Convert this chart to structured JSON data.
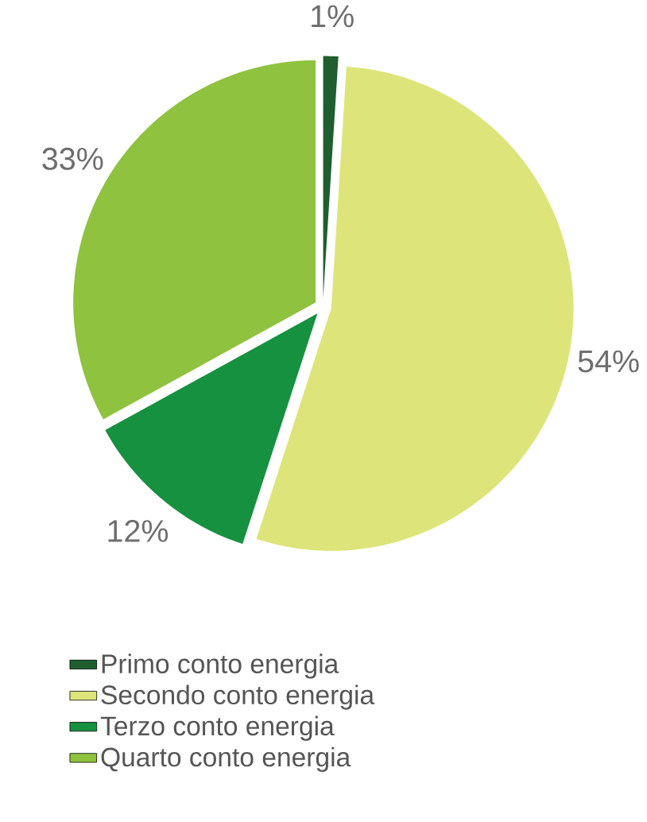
{
  "chart_data": {
    "type": "pie",
    "categories": [
      "Primo conto energia",
      "Secondo conto energia",
      "Terzo conto energia",
      "Quarto conto energia"
    ],
    "values": [
      1,
      54,
      12,
      33
    ],
    "value_labels": [
      "1%",
      "54%",
      "12%",
      "33%"
    ],
    "colors": [
      "#1f5e2e",
      "#dde57a",
      "#16913f",
      "#8fc23f"
    ],
    "legend": "bottom"
  }
}
